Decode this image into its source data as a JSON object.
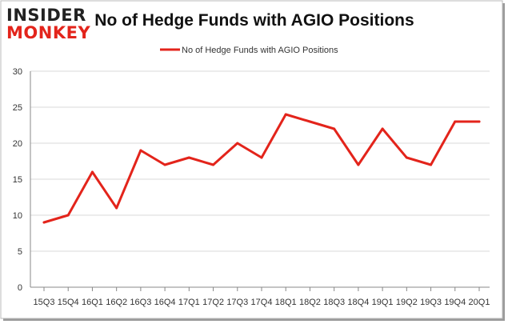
{
  "brand": {
    "logo_line1": "INSIDER",
    "logo_line2": "MONKEY"
  },
  "colors": {
    "line": "#e3241b",
    "grid": "#d9d9d9",
    "axis": "#888888",
    "frame": "#bbbbbb"
  },
  "chart_data": {
    "type": "line",
    "title": "No of Hedge Funds with AGIO Positions",
    "xlabel": "",
    "ylabel": "",
    "categories": [
      "15Q3",
      "15Q4",
      "16Q1",
      "16Q2",
      "16Q3",
      "16Q4",
      "17Q1",
      "17Q2",
      "17Q3",
      "17Q4",
      "18Q1",
      "18Q2",
      "18Q3",
      "18Q4",
      "19Q1",
      "19Q2",
      "19Q3",
      "19Q4",
      "20Q1"
    ],
    "series": [
      {
        "name": "No of Hedge Funds with AGIO Positions",
        "values": [
          9,
          10,
          16,
          11,
          19,
          17,
          18,
          17,
          20,
          18,
          24,
          23,
          22,
          17,
          22,
          18,
          17,
          23,
          23
        ]
      }
    ],
    "ylim": [
      0,
      30
    ],
    "yticks": [
      0,
      5,
      10,
      15,
      20,
      25,
      30
    ],
    "grid": true,
    "legend": "top-center"
  }
}
